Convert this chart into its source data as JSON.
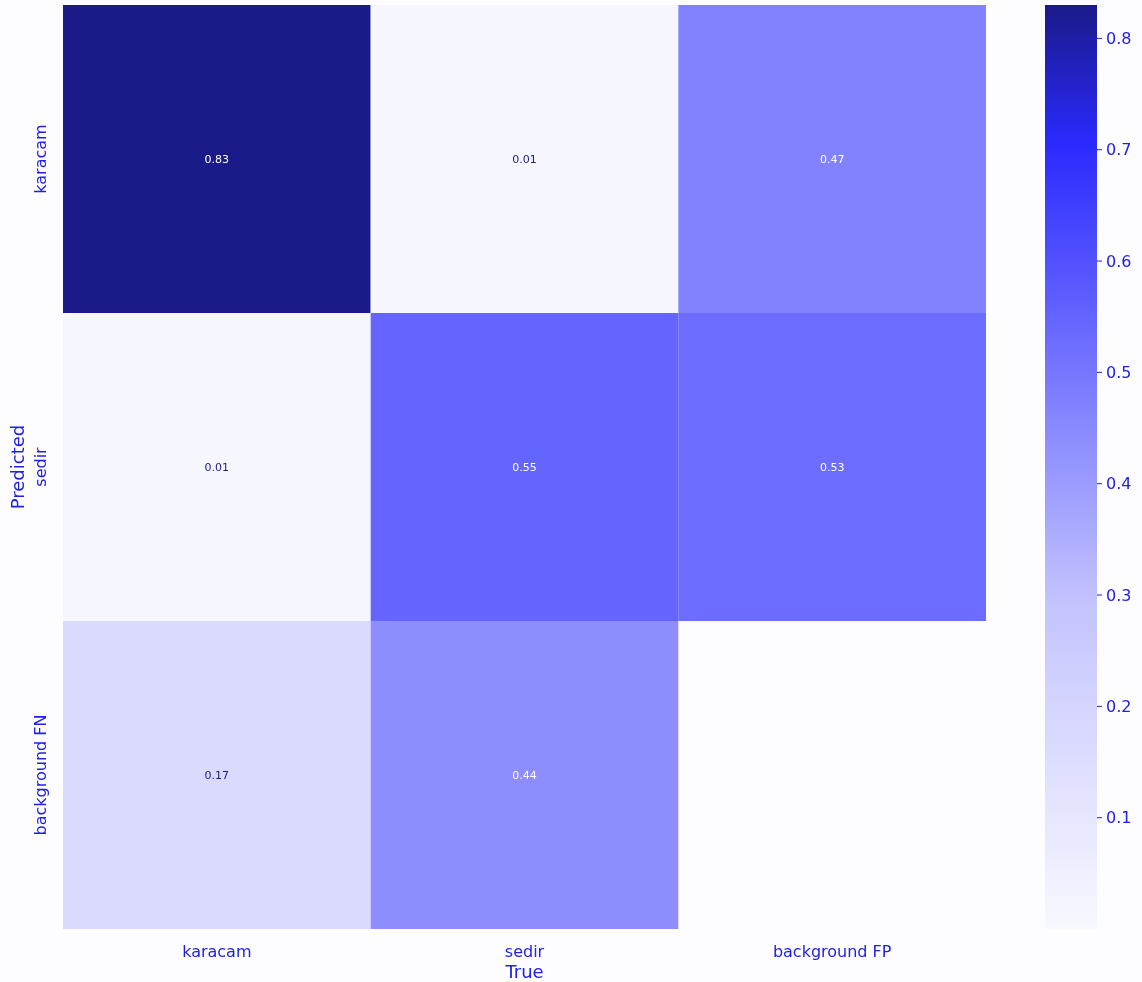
{
  "chart_data": {
    "type": "heatmap",
    "xlabel": "True",
    "ylabel": "Predicted",
    "categories": [
      "karacam",
      "sedir",
      "background FP"
    ],
    "y_categories": [
      "karacam",
      "sedir",
      "background FN"
    ],
    "cells": [
      [
        0.83,
        0.01,
        0.47
      ],
      [
        0.01,
        0.55,
        0.53
      ],
      [
        0.17,
        0.44,
        null
      ]
    ],
    "data_labels": true,
    "clim": [
      0,
      0.83
    ],
    "cticks": [
      0.1,
      0.2,
      0.3,
      0.4,
      0.5,
      0.6,
      0.7,
      0.8
    ]
  }
}
